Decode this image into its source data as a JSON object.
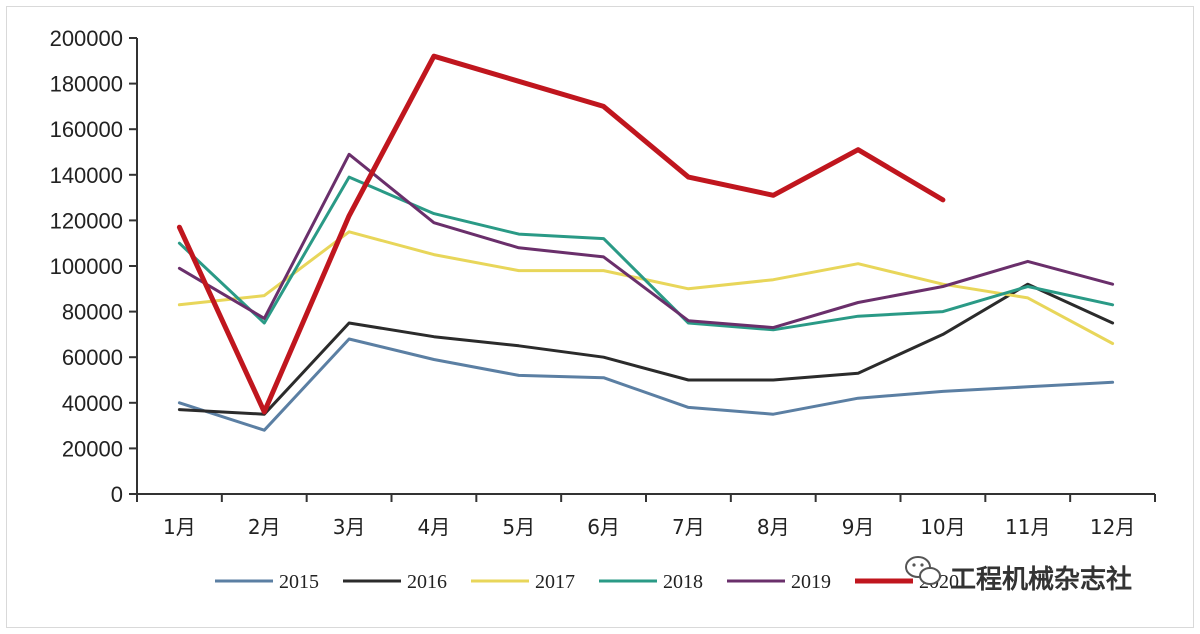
{
  "chart_data": {
    "type": "line",
    "title": "",
    "xlabel": "",
    "ylabel": "",
    "categories": [
      "1月",
      "2月",
      "3月",
      "4月",
      "5月",
      "6月",
      "7月",
      "8月",
      "9月",
      "10月",
      "11月",
      "12月"
    ],
    "ylim": [
      0,
      200000
    ],
    "yticks": [
      "0",
      "20000",
      "40000",
      "60000",
      "80000",
      "100000",
      "120000",
      "140000",
      "160000",
      "180000",
      "200000"
    ],
    "grid": false,
    "legend_position": "bottom",
    "series": [
      {
        "name": "2015",
        "color": "#5b7fa3",
        "width": 3,
        "values": [
          40000,
          28000,
          68000,
          59000,
          52000,
          51000,
          38000,
          35000,
          42000,
          45000,
          47000,
          49000
        ]
      },
      {
        "name": "2016",
        "color": "#2b2b2b",
        "width": 3,
        "values": [
          37000,
          35000,
          75000,
          69000,
          65000,
          60000,
          50000,
          50000,
          53000,
          70000,
          92000,
          75000
        ]
      },
      {
        "name": "2017",
        "color": "#e8d65a",
        "width": 3,
        "values": [
          83000,
          87000,
          115000,
          105000,
          98000,
          98000,
          90000,
          94000,
          101000,
          92000,
          86000,
          66000
        ]
      },
      {
        "name": "2018",
        "color": "#2a9a86",
        "width": 3,
        "values": [
          110000,
          75000,
          139000,
          123000,
          114000,
          112000,
          75000,
          72000,
          78000,
          80000,
          91000,
          83000
        ]
      },
      {
        "name": "2019",
        "color": "#6a2f6b",
        "width": 3,
        "values": [
          99000,
          77000,
          149000,
          119000,
          108000,
          104000,
          76000,
          73000,
          84000,
          91000,
          102000,
          92000
        ]
      },
      {
        "name": "2020",
        "color": "#c0161e",
        "width": 5,
        "values": [
          117000,
          36000,
          122000,
          192000,
          181000,
          170000,
          139000,
          131000,
          151000,
          129000,
          null,
          null
        ]
      }
    ]
  },
  "watermark": {
    "text": "工程机械杂志社",
    "icon": "wechat-icon"
  }
}
